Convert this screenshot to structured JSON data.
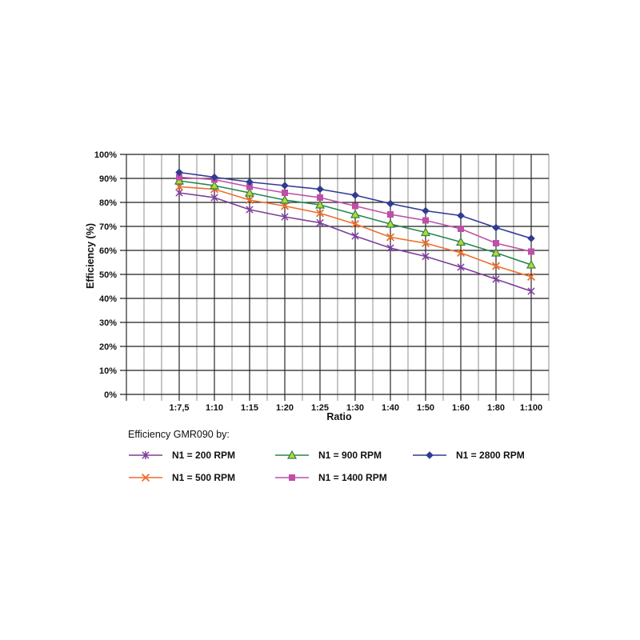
{
  "chart_data": {
    "type": "line",
    "title": "",
    "xlabel": "Ratio",
    "ylabel": "Efficiency (%)",
    "x_categories": [
      "1:7,5",
      "1:10",
      "1:15",
      "1:20",
      "1:25",
      "1:30",
      "1:40",
      "1:50",
      "1:60",
      "1:80",
      "1:100"
    ],
    "y_ticks": [
      "100%",
      "90%",
      "80%",
      "70%",
      "60%",
      "50%",
      "40%",
      "30%",
      "20%",
      "10%",
      "0%"
    ],
    "ylim": [
      0,
      100
    ],
    "grid": "horizontal major every 10%, vertical major at categories with minor lines at half-steps",
    "legend_title": "Efficiency GMR090 by:",
    "legend_position": "below-chart, 3 columns",
    "legend_order": [
      0,
      2,
      4,
      1,
      3
    ],
    "series": [
      {
        "name": "N1 = 200 RPM",
        "color": "#7B3E98",
        "marker": "star",
        "values": [
          84,
          82,
          77,
          74,
          71.5,
          66,
          61,
          57.5,
          53,
          48,
          43
        ]
      },
      {
        "name": "N1 = 500 RPM",
        "color": "#EE6E2D",
        "marker": "x",
        "values": [
          86.5,
          85.5,
          81,
          78.5,
          75.5,
          71,
          65.5,
          63,
          59,
          53.5,
          49
        ]
      },
      {
        "name": "N1 = 900 RPM",
        "color": "#27864F",
        "marker": "triangle",
        "marker_fill": "#BCD431",
        "values": [
          89,
          87,
          84,
          81,
          79,
          75,
          71,
          67.5,
          63.5,
          59,
          54
        ]
      },
      {
        "name": "N1 = 1400 RPM",
        "color": "#BF4FA7",
        "marker": "square",
        "values": [
          90.5,
          89.5,
          86.5,
          84,
          82,
          78.5,
          75,
          72.5,
          69,
          63,
          59.5
        ]
      },
      {
        "name": "N1 = 2800 RPM",
        "color": "#303B94",
        "marker": "diamond",
        "values": [
          92.5,
          90.5,
          88.5,
          87,
          85.5,
          83,
          79.5,
          76.5,
          74.5,
          69.5,
          65
        ]
      }
    ]
  }
}
